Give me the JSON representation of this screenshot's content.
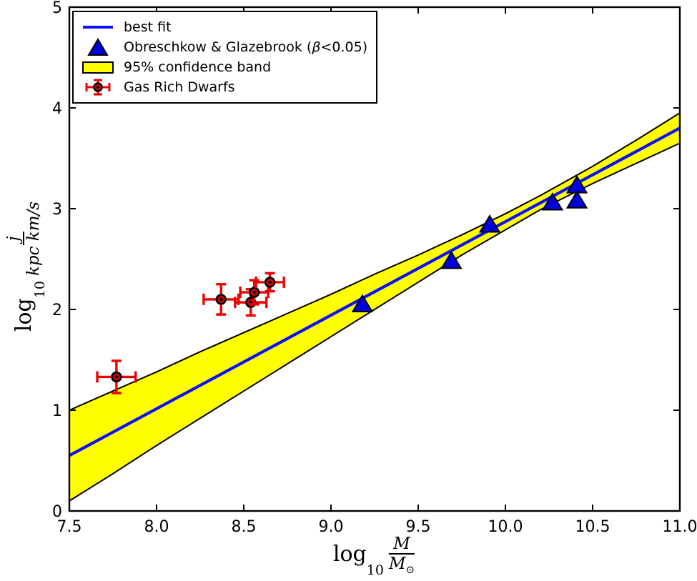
{
  "figure": {
    "background": "#ffffff",
    "axis_color": "#000000"
  },
  "legend": {
    "position": "upper left",
    "items": [
      {
        "type": "line",
        "label": "best fit"
      },
      {
        "type": "triangle",
        "label_pre": "Obreschkow & Glazebrook (",
        "label_beta": "β",
        "label_post": "<0.05)"
      },
      {
        "type": "band",
        "label": "95% confidence band"
      },
      {
        "type": "errorbar",
        "label": "Gas Rich Dwarfs"
      }
    ]
  },
  "axes": {
    "xlabel": {
      "log": "log",
      "sub": "10",
      "num": "M",
      "den": "M",
      "den_sub": "⊙"
    },
    "ylabel": {
      "log": "log",
      "sub": "10",
      "num": "j",
      "den": "kpc km/s"
    }
  },
  "chart_data": {
    "type": "scatter",
    "title": "",
    "xlabel": "log10(M/Msun)",
    "ylabel": "log10(j/(kpc km/s))",
    "xlim": [
      7.5,
      11.0
    ],
    "ylim": [
      0,
      5
    ],
    "grid": false,
    "xtick_values": [
      7.5,
      8.0,
      8.5,
      9.0,
      9.5,
      10.0,
      10.5,
      11.0
    ],
    "xtick_labels": [
      "7.5",
      "8.0",
      "8.5",
      "9.0",
      "9.5",
      "10.0",
      "10.5",
      "11.0"
    ],
    "ytick_values": [
      0,
      1,
      2,
      3,
      4,
      5
    ],
    "ytick_labels": [
      "0",
      "1",
      "2",
      "3",
      "4",
      "5"
    ],
    "colors": {
      "best_fit": "#0d0dff",
      "triangle": "#0000dd",
      "band_fill": "#ffff00",
      "band_edge": "#000000",
      "error_bar": "#ee0000",
      "marker_face": "#cc0000",
      "marker_edge": "#000000"
    },
    "best_fit": {
      "x": [
        7.5,
        11.0
      ],
      "y": [
        0.55,
        3.8
      ]
    },
    "confidence_band": {
      "x": [
        7.5,
        7.75,
        8.0,
        8.25,
        8.5,
        8.75,
        9.0,
        9.25,
        9.5,
        9.75,
        10.0,
        10.2,
        10.5,
        10.75,
        11.0
      ],
      "upper": [
        1.0,
        1.19,
        1.38,
        1.58,
        1.77,
        1.96,
        2.15,
        2.35,
        2.54,
        2.74,
        2.95,
        3.13,
        3.42,
        3.68,
        3.95
      ],
      "lower": [
        0.1,
        0.37,
        0.65,
        0.92,
        1.19,
        1.46,
        1.73,
        2.0,
        2.27,
        2.54,
        2.79,
        2.99,
        3.25,
        3.45,
        3.65
      ]
    },
    "series": [
      {
        "name": "Obreschkow & Glazebrook (beta<0.05)",
        "marker": "triangle",
        "points": [
          {
            "x": 9.18,
            "y": 2.05
          },
          {
            "x": 9.69,
            "y": 2.48
          },
          {
            "x": 9.91,
            "y": 2.84
          },
          {
            "x": 10.27,
            "y": 3.06
          },
          {
            "x": 10.41,
            "y": 3.23
          },
          {
            "x": 10.41,
            "y": 3.08
          }
        ]
      },
      {
        "name": "Gas Rich Dwarfs",
        "marker": "circle-errorbar",
        "points": [
          {
            "x": 7.77,
            "y": 1.33,
            "xerr": 0.11,
            "yerr": 0.16
          },
          {
            "x": 8.37,
            "y": 2.1,
            "xerr": 0.1,
            "yerr": 0.15
          },
          {
            "x": 8.54,
            "y": 2.07,
            "xerr": 0.09,
            "yerr": 0.13
          },
          {
            "x": 8.56,
            "y": 2.17,
            "xerr": 0.08,
            "yerr": 0.12
          },
          {
            "x": 8.65,
            "y": 2.27,
            "xerr": 0.08,
            "yerr": 0.09
          }
        ]
      }
    ]
  }
}
